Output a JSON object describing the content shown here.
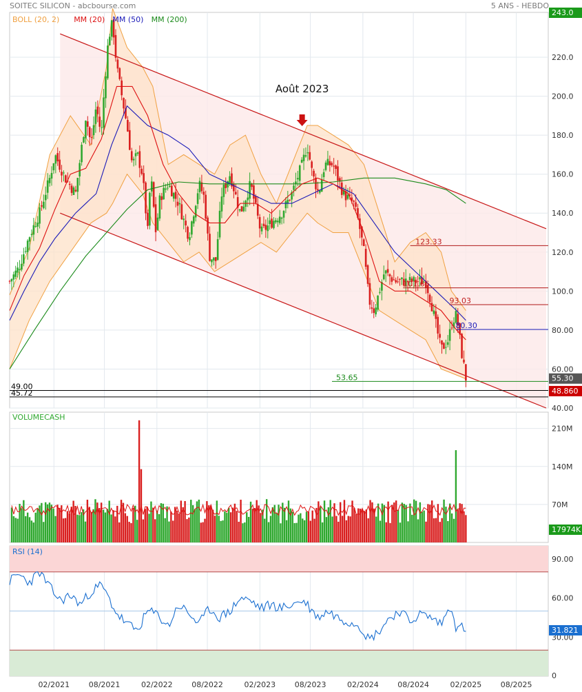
{
  "header": {
    "title": "SOITEC SILICON - abcbourse.com",
    "period": "5 ANS - HEBDO"
  },
  "colors": {
    "up": "#2fa82f",
    "down": "#d91f1f",
    "boll": "#f0a040",
    "boll_fill": "#fde2c8",
    "ma20": "#dd1111",
    "ma50": "#1a1ab8",
    "ma200": "#1a8a1a",
    "rsi": "#1a6fd0",
    "grid": "#e2e8ee",
    "channel": "#c81818",
    "channel_fill": "#fde8e8",
    "rsi_over": "#fbd6d6",
    "rsi_under": "#d9ebd6",
    "tag_green": "#1a9a1a",
    "tag_red": "#cc0000",
    "tag_gray": "#555555",
    "tag_blue": "#1a6fd0"
  },
  "chart_data": [
    {
      "type": "line",
      "panel": "price",
      "legend": [
        {
          "label": "BOLL (20, 2)",
          "color": "#f0a040"
        },
        {
          "label": "MM (20)",
          "color": "#dd1111"
        },
        {
          "label": "MM (50)",
          "color": "#1a1ab8"
        },
        {
          "label": "MM (200)",
          "color": "#1a8a1a"
        }
      ],
      "x_ticks": [
        "02/2021",
        "08/2021",
        "02/2022",
        "08/2022",
        "02/2023",
        "08/2023",
        "02/2024",
        "08/2024",
        "02/2025",
        "08/2025"
      ],
      "y_ticks": [
        "40.00",
        "60.00",
        "80.00",
        "100.0",
        "120.0",
        "140.0",
        "160.0",
        "180.0",
        "200.0",
        "220.0"
      ],
      "ylim": [
        40,
        243
      ],
      "x_range": [
        2020.66,
        2025.89
      ],
      "series": [
        {
          "key": "close",
          "x": [
            2020.66,
            2020.75,
            2020.85,
            2020.95,
            2021.05,
            2021.1,
            2021.2,
            2021.3,
            2021.4,
            2021.45,
            2021.5,
            2021.55,
            2021.58,
            2021.62,
            2021.66,
            2021.7,
            2021.75,
            2021.8,
            2021.85,
            2021.9,
            2021.95,
            2022.0,
            2022.03,
            2022.08,
            2022.12,
            2022.2,
            2022.3,
            2022.4,
            2022.5,
            2022.55,
            2022.6,
            2022.66,
            2022.72,
            2022.8,
            2022.9,
            2023.0,
            2023.1,
            2023.2,
            2023.3,
            2023.4,
            2023.5,
            2023.55,
            2023.6,
            2023.66,
            2023.72,
            2023.8,
            2023.9,
            2024.0,
            2024.05,
            2024.1,
            2024.15,
            2024.2,
            2024.3,
            2024.4,
            2024.5,
            2024.6,
            2024.7,
            2024.75,
            2024.85,
            2024.92,
            2024.96,
            2025.0,
            2025.05,
            2025.09
          ],
          "y": [
            105,
            112,
            128,
            140,
            158,
            170,
            158,
            150,
            190,
            175,
            195,
            180,
            205,
            230,
            238,
            215,
            200,
            185,
            165,
            170,
            160,
            130,
            160,
            130,
            148,
            155,
            145,
            128,
            155,
            148,
            118,
            115,
            150,
            160,
            140,
            155,
            130,
            135,
            140,
            150,
            165,
            175,
            160,
            150,
            165,
            165,
            150,
            145,
            135,
            120,
            95,
            90,
            110,
            105,
            105,
            105,
            105,
            95,
            70,
            75,
            85,
            88,
            68,
            55.3
          ]
        },
        {
          "key": "ma20",
          "x": [
            2020.66,
            2020.8,
            2020.95,
            2021.1,
            2021.25,
            2021.4,
            2021.55,
            2021.7,
            2021.85,
            2022.0,
            2022.15,
            2022.3,
            2022.45,
            2022.6,
            2022.75,
            2022.9,
            2023.05,
            2023.2,
            2023.35,
            2023.5,
            2023.65,
            2023.8,
            2023.95,
            2024.1,
            2024.25,
            2024.4,
            2024.55,
            2024.7,
            2024.85,
            2025.0,
            2025.09
          ],
          "y": [
            90,
            108,
            122,
            142,
            160,
            163,
            178,
            205,
            205,
            190,
            165,
            150,
            140,
            135,
            135,
            145,
            145,
            140,
            148,
            155,
            158,
            155,
            150,
            130,
            105,
            100,
            100,
            95,
            90,
            80,
            75
          ]
        },
        {
          "key": "ma50",
          "x": [
            2020.66,
            2020.8,
            2020.95,
            2021.1,
            2021.3,
            2021.5,
            2021.65,
            2021.8,
            2022.0,
            2022.2,
            2022.4,
            2022.6,
            2022.8,
            2023.0,
            2023.2,
            2023.4,
            2023.6,
            2023.8,
            2024.0,
            2024.2,
            2024.4,
            2024.6,
            2024.8,
            2024.9,
            2025.0,
            2025.09
          ],
          "y": [
            85,
            100,
            115,
            127,
            140,
            150,
            175,
            195,
            185,
            180,
            173,
            160,
            155,
            150,
            145,
            145,
            150,
            155,
            150,
            135,
            120,
            110,
            100,
            95,
            90,
            85
          ]
        },
        {
          "key": "ma200",
          "x": [
            2020.66,
            2020.9,
            2021.15,
            2021.4,
            2021.6,
            2021.8,
            2022.0,
            2022.3,
            2022.6,
            2022.9,
            2023.2,
            2023.5,
            2023.8,
            2024.1,
            2024.4,
            2024.7,
            2024.9,
            2025.09
          ],
          "y": [
            60,
            80,
            100,
            118,
            130,
            142,
            152,
            156,
            155,
            155,
            155,
            155,
            156,
            158,
            158,
            155,
            152,
            145
          ]
        },
        {
          "key": "boll_upper",
          "x": [
            2020.66,
            2020.85,
            2021.05,
            2021.25,
            2021.45,
            2021.6,
            2021.66,
            2021.8,
            2021.95,
            2022.05,
            2022.2,
            2022.35,
            2022.5,
            2022.65,
            2022.8,
            2022.95,
            2023.1,
            2023.25,
            2023.4,
            2023.55,
            2023.65,
            2023.8,
            2023.95,
            2024.1,
            2024.25,
            2024.4,
            2024.55,
            2024.7,
            2024.85,
            2024.95,
            2025.09
          ],
          "y": [
            98,
            122,
            170,
            190,
            175,
            215,
            245,
            225,
            215,
            205,
            165,
            170,
            165,
            160,
            175,
            180,
            160,
            145,
            165,
            185,
            185,
            180,
            175,
            165,
            140,
            115,
            125,
            130,
            120,
            100,
            90
          ]
        },
        {
          "key": "boll_lower",
          "x": [
            2020.66,
            2020.85,
            2021.05,
            2021.25,
            2021.45,
            2021.6,
            2021.66,
            2021.8,
            2021.95,
            2022.05,
            2022.2,
            2022.35,
            2022.5,
            2022.65,
            2022.8,
            2022.95,
            2023.1,
            2023.25,
            2023.4,
            2023.55,
            2023.65,
            2023.8,
            2023.95,
            2024.1,
            2024.25,
            2024.4,
            2024.55,
            2024.7,
            2024.85,
            2024.95,
            2025.09
          ],
          "y": [
            60,
            85,
            105,
            120,
            135,
            140,
            145,
            160,
            150,
            135,
            125,
            115,
            120,
            110,
            115,
            120,
            125,
            120,
            130,
            140,
            135,
            130,
            130,
            110,
            90,
            85,
            80,
            75,
            60,
            58,
            55
          ]
        }
      ]
    },
    {
      "type": "bar",
      "panel": "volume",
      "label": "VOLUMECASH",
      "y_ticks": [
        "70M",
        "140M",
        "210M"
      ],
      "ylim": [
        0,
        240
      ],
      "unit": "M",
      "peaks": [
        {
          "x": 2021.92,
          "y": 225
        },
        {
          "x": 2021.94,
          "y": 135
        },
        {
          "x": 2025.0,
          "y": 170
        }
      ],
      "ma_level": 60,
      "last_value": "17974K"
    },
    {
      "type": "line",
      "panel": "rsi",
      "label": "RSI (14)",
      "y_ticks": [
        "30.00",
        "60.00",
        "90.00"
      ],
      "ylim": [
        0,
        100
      ],
      "overbought": 80,
      "oversold": 20,
      "series": [
        {
          "key": "rsi",
          "x": [
            2020.66,
            2020.75,
            2020.85,
            2020.95,
            2021.05,
            2021.15,
            2021.25,
            2021.35,
            2021.45,
            2021.55,
            2021.62,
            2021.7,
            2021.8,
            2021.9,
            2022.0,
            2022.1,
            2022.2,
            2022.3,
            2022.4,
            2022.5,
            2022.6,
            2022.7,
            2022.8,
            2022.9,
            2023.0,
            2023.1,
            2023.2,
            2023.3,
            2023.4,
            2023.5,
            2023.55,
            2023.65,
            2023.75,
            2023.85,
            2023.95,
            2024.05,
            2024.15,
            2024.25,
            2024.35,
            2024.45,
            2024.55,
            2024.65,
            2024.75,
            2024.85,
            2024.95,
            2025.0,
            2025.05,
            2025.09
          ],
          "y": [
            73,
            78,
            72,
            80,
            68,
            58,
            62,
            55,
            65,
            70,
            60,
            48,
            40,
            35,
            50,
            47,
            38,
            55,
            48,
            40,
            52,
            45,
            50,
            60,
            58,
            52,
            55,
            52,
            55,
            58,
            55,
            45,
            50,
            45,
            42,
            40,
            28,
            35,
            45,
            50,
            42,
            48,
            45,
            40,
            55,
            35,
            38,
            36
          ]
        }
      ],
      "last_value": "31.821"
    }
  ],
  "levels": {
    "ma_tags": [
      {
        "value": "123.33",
        "y": 123.33
      },
      {
        "value": "101.66",
        "y": 101.66
      },
      {
        "value": "93.03",
        "y": 93.03
      },
      {
        "value": "80.30",
        "y": 80.3
      },
      {
        "value": "53.65",
        "y": 53.65
      },
      {
        "value": "49.00",
        "y": 49.0
      },
      {
        "value": "45.72",
        "y": 45.72
      }
    ],
    "price_tags": [
      {
        "label": "243.0",
        "y": 243.0,
        "color": "#1a9a1a"
      },
      {
        "label": "55.30",
        "y": 55.3,
        "color": "#555555"
      },
      {
        "label": "48.860",
        "y": 48.86,
        "color": "#cc0000"
      }
    ]
  },
  "annotation": {
    "text": "Août 2023",
    "x": 2023.5,
    "y": 177
  },
  "channel": {
    "upper": {
      "x1": 2021.15,
      "y1": 232,
      "x2": 2025.87,
      "y2": 132
    },
    "lower": {
      "x1": 2021.15,
      "y1": 140,
      "x2": 2025.87,
      "y2": 40
    }
  }
}
